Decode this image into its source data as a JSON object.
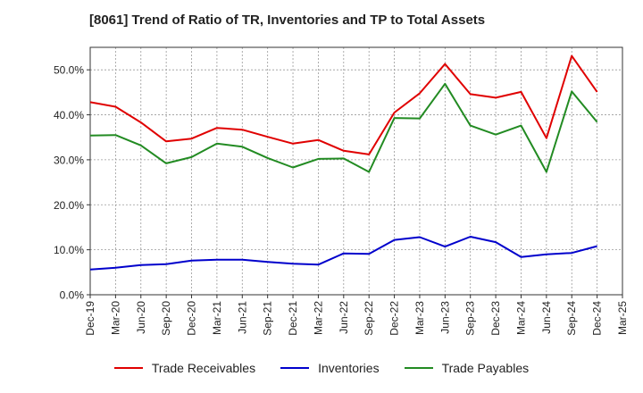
{
  "chart_data": {
    "type": "line",
    "title": "[8061]  Trend of Ratio of TR, Inventories and TP to Total Assets",
    "xlabel": "",
    "ylabel": "",
    "ylim": [
      0,
      55
    ],
    "yticks": [
      0,
      10,
      20,
      30,
      40,
      50
    ],
    "ytick_labels": [
      "0.0%",
      "10.0%",
      "20.0%",
      "30.0%",
      "40.0%",
      "50.0%"
    ],
    "grid": true,
    "legend_position": "bottom",
    "categories": [
      "Dec-19",
      "Mar-20",
      "Jun-20",
      "Sep-20",
      "Dec-20",
      "Mar-21",
      "Jun-21",
      "Sep-21",
      "Dec-21",
      "Mar-22",
      "Jun-22",
      "Sep-22",
      "Dec-22",
      "Mar-23",
      "Jun-23",
      "Sep-23",
      "Dec-23",
      "Mar-24",
      "Jun-24",
      "Sep-24",
      "Dec-24",
      "Mar-25"
    ],
    "series": [
      {
        "name": "Trade Receivables",
        "color": "#e00000",
        "values": [
          42.8,
          41.8,
          38.3,
          34.1,
          34.7,
          37.1,
          36.7,
          35.1,
          33.6,
          34.4,
          32.0,
          31.2,
          40.5,
          44.8,
          51.3,
          44.6,
          43.8,
          45.1,
          34.8,
          53.1,
          45.1,
          null
        ]
      },
      {
        "name": "Inventories",
        "color": "#0000cc",
        "values": [
          5.6,
          6.0,
          6.6,
          6.8,
          7.6,
          7.8,
          7.8,
          7.3,
          6.9,
          6.7,
          9.2,
          9.1,
          12.2,
          12.8,
          10.7,
          12.9,
          11.7,
          8.4,
          9.0,
          9.3,
          10.8,
          null
        ]
      },
      {
        "name": "Trade Payables",
        "color": "#228b22",
        "values": [
          35.4,
          35.5,
          33.2,
          29.2,
          30.6,
          33.6,
          32.9,
          30.4,
          28.3,
          30.2,
          30.3,
          27.3,
          39.3,
          39.2,
          46.9,
          37.6,
          35.6,
          37.6,
          27.3,
          45.2,
          38.4,
          null
        ]
      }
    ]
  }
}
